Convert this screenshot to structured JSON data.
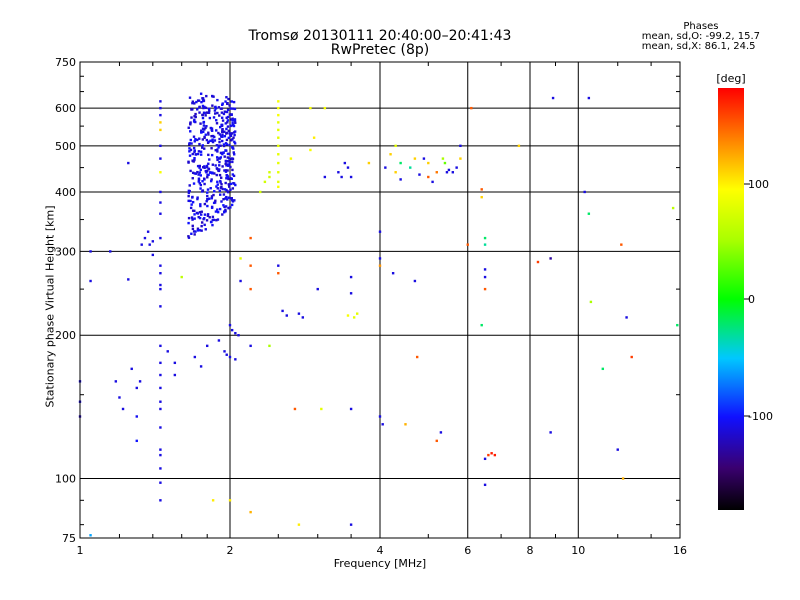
{
  "title": {
    "line1": "Tromsø 20130111 20:40:00–20:41:43",
    "line2": "RwPretec (8p)"
  },
  "phases_box": {
    "heading": "Phases",
    "line_o": "mean, sd,O: -99.2, 15.7",
    "line_x": "mean, sd,X:  86.1, 24.5"
  },
  "colorbar": {
    "unit_label": "[deg]",
    "tick_labels": [
      "100",
      "0",
      "-100"
    ],
    "range": [
      -180,
      180
    ]
  },
  "chart_data": {
    "type": "scatter",
    "xlabel": "Frequency [MHz]",
    "ylabel": "Stationary phase Virtual Height [km]",
    "x_scale": "log",
    "y_scale": "log",
    "xlim": [
      1,
      16
    ],
    "ylim": [
      75,
      750
    ],
    "x_ticks": [
      "1",
      "2",
      "4",
      "6",
      "8",
      "10",
      "16"
    ],
    "y_ticks": [
      "750",
      "600",
      "500",
      "400",
      "300",
      "200",
      "100",
      "75"
    ],
    "grid_x": [
      2,
      4,
      6,
      8,
      10
    ],
    "grid_y": [
      100,
      200,
      300,
      400,
      500,
      600
    ],
    "legend": "colorbar right",
    "points": [
      {
        "x": 1.0,
        "y": 160,
        "p": -110
      },
      {
        "x": 1.0,
        "y": 145,
        "p": -110
      },
      {
        "x": 1.0,
        "y": 135,
        "p": -120
      },
      {
        "x": 1.05,
        "y": 300,
        "p": -110
      },
      {
        "x": 1.05,
        "y": 260,
        "p": -110
      },
      {
        "x": 1.05,
        "y": 76,
        "p": -60
      },
      {
        "x": 1.15,
        "y": 300,
        "p": -110
      },
      {
        "x": 1.18,
        "y": 160,
        "p": -110
      },
      {
        "x": 1.2,
        "y": 148,
        "p": -110
      },
      {
        "x": 1.22,
        "y": 140,
        "p": -110
      },
      {
        "x": 1.25,
        "y": 460,
        "p": -110
      },
      {
        "x": 1.25,
        "y": 262,
        "p": -110
      },
      {
        "x": 1.27,
        "y": 170,
        "p": -110
      },
      {
        "x": 1.3,
        "y": 155,
        "p": -110
      },
      {
        "x": 1.3,
        "y": 135,
        "p": -105
      },
      {
        "x": 1.32,
        "y": 160,
        "p": -110
      },
      {
        "x": 1.33,
        "y": 310,
        "p": -110
      },
      {
        "x": 1.35,
        "y": 320,
        "p": -110
      },
      {
        "x": 1.37,
        "y": 330,
        "p": -110
      },
      {
        "x": 1.38,
        "y": 310,
        "p": -110
      },
      {
        "x": 1.4,
        "y": 315,
        "p": -110
      },
      {
        "x": 1.4,
        "y": 295,
        "p": -110
      },
      {
        "x": 1.3,
        "y": 120,
        "p": -100
      },
      {
        "x": 1.45,
        "y": 620,
        "p": -110
      },
      {
        "x": 1.45,
        "y": 600,
        "p": -110
      },
      {
        "x": 1.45,
        "y": 580,
        "p": -110
      },
      {
        "x": 1.45,
        "y": 560,
        "p": 110
      },
      {
        "x": 1.45,
        "y": 540,
        "p": 110
      },
      {
        "x": 1.45,
        "y": 500,
        "p": -110
      },
      {
        "x": 1.45,
        "y": 470,
        "p": -110
      },
      {
        "x": 1.45,
        "y": 440,
        "p": 90
      },
      {
        "x": 1.45,
        "y": 400,
        "p": -110
      },
      {
        "x": 1.45,
        "y": 380,
        "p": -110
      },
      {
        "x": 1.45,
        "y": 360,
        "p": -110
      },
      {
        "x": 1.45,
        "y": 320,
        "p": -110
      },
      {
        "x": 1.45,
        "y": 280,
        "p": -110
      },
      {
        "x": 1.45,
        "y": 270,
        "p": -110
      },
      {
        "x": 1.45,
        "y": 255,
        "p": -110
      },
      {
        "x": 1.45,
        "y": 250,
        "p": -110
      },
      {
        "x": 1.45,
        "y": 230,
        "p": -110
      },
      {
        "x": 1.45,
        "y": 190,
        "p": -110
      },
      {
        "x": 1.45,
        "y": 175,
        "p": -110
      },
      {
        "x": 1.45,
        "y": 165,
        "p": -110
      },
      {
        "x": 1.45,
        "y": 155,
        "p": -110
      },
      {
        "x": 1.45,
        "y": 145,
        "p": -110
      },
      {
        "x": 1.45,
        "y": 140,
        "p": -110
      },
      {
        "x": 1.45,
        "y": 128,
        "p": -110
      },
      {
        "x": 1.45,
        "y": 115,
        "p": -110
      },
      {
        "x": 1.45,
        "y": 112,
        "p": -110
      },
      {
        "x": 1.45,
        "y": 105,
        "p": -110
      },
      {
        "x": 1.45,
        "y": 98,
        "p": -110
      },
      {
        "x": 1.45,
        "y": 90,
        "p": -110
      },
      {
        "x": 1.5,
        "y": 185,
        "p": -110
      },
      {
        "x": 1.55,
        "y": 175,
        "p": -110
      },
      {
        "x": 1.55,
        "y": 165,
        "p": -110
      },
      {
        "x": 1.6,
        "y": 265,
        "p": 60
      },
      {
        "x": 1.7,
        "y": 180,
        "p": -110
      },
      {
        "x": 1.75,
        "y": 172,
        "p": -110
      },
      {
        "x": 1.8,
        "y": 190,
        "p": -110
      },
      {
        "x": 1.85,
        "y": 90,
        "p": 100
      },
      {
        "x": 1.9,
        "y": 195,
        "p": -110
      },
      {
        "x": 1.95,
        "y": 185,
        "p": -110
      },
      {
        "x": 1.97,
        "y": 182,
        "p": -110
      },
      {
        "x": 2.0,
        "y": 180,
        "p": -110
      },
      {
        "x": 2.05,
        "y": 178,
        "p": -110
      },
      {
        "x": 2.0,
        "y": 210,
        "p": -110
      },
      {
        "x": 2.02,
        "y": 205,
        "p": -110
      },
      {
        "x": 2.05,
        "y": 202,
        "p": -110
      },
      {
        "x": 2.08,
        "y": 200,
        "p": -110
      },
      {
        "x": 2.0,
        "y": 90,
        "p": 100
      },
      {
        "x": 2.1,
        "y": 290,
        "p": 80
      },
      {
        "x": 2.1,
        "y": 260,
        "p": -110
      },
      {
        "x": 2.2,
        "y": 320,
        "p": 150
      },
      {
        "x": 2.2,
        "y": 280,
        "p": 150
      },
      {
        "x": 2.2,
        "y": 250,
        "p": 150
      },
      {
        "x": 2.2,
        "y": 190,
        "p": -110
      },
      {
        "x": 2.2,
        "y": 85,
        "p": 120
      },
      {
        "x": 2.3,
        "y": 400,
        "p": 70
      },
      {
        "x": 2.35,
        "y": 420,
        "p": 70
      },
      {
        "x": 2.4,
        "y": 430,
        "p": 70
      },
      {
        "x": 2.4,
        "y": 440,
        "p": 70
      },
      {
        "x": 2.4,
        "y": 190,
        "p": 50
      },
      {
        "x": 2.5,
        "y": 280,
        "p": -110
      },
      {
        "x": 2.5,
        "y": 270,
        "p": 150
      },
      {
        "x": 2.55,
        "y": 225,
        "p": -110
      },
      {
        "x": 2.6,
        "y": 220,
        "p": -110
      },
      {
        "x": 2.5,
        "y": 620,
        "p": 90
      },
      {
        "x": 2.5,
        "y": 600,
        "p": 90
      },
      {
        "x": 2.5,
        "y": 580,
        "p": 90
      },
      {
        "x": 2.5,
        "y": 560,
        "p": 80
      },
      {
        "x": 2.5,
        "y": 540,
        "p": 80
      },
      {
        "x": 2.5,
        "y": 520,
        "p": 80
      },
      {
        "x": 2.5,
        "y": 500,
        "p": 80
      },
      {
        "x": 2.5,
        "y": 480,
        "p": 80
      },
      {
        "x": 2.5,
        "y": 460,
        "p": 80
      },
      {
        "x": 2.5,
        "y": 440,
        "p": 80
      },
      {
        "x": 2.5,
        "y": 420,
        "p": 80
      },
      {
        "x": 2.5,
        "y": 410,
        "p": 90
      },
      {
        "x": 2.65,
        "y": 470,
        "p": 90
      },
      {
        "x": 2.7,
        "y": 140,
        "p": 150
      },
      {
        "x": 2.75,
        "y": 222,
        "p": -110
      },
      {
        "x": 2.8,
        "y": 218,
        "p": -110
      },
      {
        "x": 2.75,
        "y": 80,
        "p": 100
      },
      {
        "x": 2.9,
        "y": 600,
        "p": 90
      },
      {
        "x": 2.9,
        "y": 490,
        "p": 90
      },
      {
        "x": 2.95,
        "y": 520,
        "p": 100
      },
      {
        "x": 3.0,
        "y": 250,
        "p": -110
      },
      {
        "x": 3.05,
        "y": 140,
        "p": 80
      },
      {
        "x": 3.1,
        "y": 600,
        "p": 90
      },
      {
        "x": 3.1,
        "y": 430,
        "p": -110
      },
      {
        "x": 3.3,
        "y": 440,
        "p": -110
      },
      {
        "x": 3.35,
        "y": 430,
        "p": -110
      },
      {
        "x": 3.4,
        "y": 460,
        "p": -110
      },
      {
        "x": 3.45,
        "y": 450,
        "p": -110
      },
      {
        "x": 3.5,
        "y": 430,
        "p": -110
      },
      {
        "x": 3.45,
        "y": 220,
        "p": 90
      },
      {
        "x": 3.5,
        "y": 265,
        "p": -110
      },
      {
        "x": 3.5,
        "y": 245,
        "p": -110
      },
      {
        "x": 3.55,
        "y": 218,
        "p": 80
      },
      {
        "x": 3.6,
        "y": 222,
        "p": 80
      },
      {
        "x": 3.5,
        "y": 140,
        "p": -110
      },
      {
        "x": 3.5,
        "y": 80,
        "p": -110
      },
      {
        "x": 3.8,
        "y": 460,
        "p": 110
      },
      {
        "x": 4.0,
        "y": 330,
        "p": -110
      },
      {
        "x": 4.0,
        "y": 290,
        "p": -110
      },
      {
        "x": 4.0,
        "y": 280,
        "p": 130
      },
      {
        "x": 4.0,
        "y": 135,
        "p": -110
      },
      {
        "x": 4.05,
        "y": 130,
        "p": -110
      },
      {
        "x": 4.1,
        "y": 450,
        "p": -110
      },
      {
        "x": 4.2,
        "y": 480,
        "p": 110
      },
      {
        "x": 4.25,
        "y": 270,
        "p": -110
      },
      {
        "x": 4.3,
        "y": 440,
        "p": 110
      },
      {
        "x": 4.3,
        "y": 500,
        "p": 80
      },
      {
        "x": 4.4,
        "y": 460,
        "p": -20
      },
      {
        "x": 4.4,
        "y": 425,
        "p": -110
      },
      {
        "x": 4.5,
        "y": 130,
        "p": 120
      },
      {
        "x": 4.6,
        "y": 450,
        "p": -30
      },
      {
        "x": 4.7,
        "y": 470,
        "p": 110
      },
      {
        "x": 4.7,
        "y": 260,
        "p": -110
      },
      {
        "x": 4.75,
        "y": 180,
        "p": 150
      },
      {
        "x": 4.8,
        "y": 435,
        "p": -110
      },
      {
        "x": 4.9,
        "y": 470,
        "p": -110
      },
      {
        "x": 5.0,
        "y": 460,
        "p": 110
      },
      {
        "x": 5.0,
        "y": 430,
        "p": 150
      },
      {
        "x": 5.1,
        "y": 420,
        "p": -110
      },
      {
        "x": 5.2,
        "y": 440,
        "p": 140
      },
      {
        "x": 5.2,
        "y": 120,
        "p": 150
      },
      {
        "x": 5.3,
        "y": 125,
        "p": -110
      },
      {
        "x": 5.35,
        "y": 470,
        "p": 50
      },
      {
        "x": 5.4,
        "y": 460,
        "p": 30
      },
      {
        "x": 5.45,
        "y": 440,
        "p": -110
      },
      {
        "x": 5.5,
        "y": 445,
        "p": -110
      },
      {
        "x": 5.6,
        "y": 440,
        "p": -110
      },
      {
        "x": 5.7,
        "y": 450,
        "p": -110
      },
      {
        "x": 5.8,
        "y": 470,
        "p": 110
      },
      {
        "x": 5.8,
        "y": 500,
        "p": -110
      },
      {
        "x": 6.0,
        "y": 310,
        "p": 150
      },
      {
        "x": 6.1,
        "y": 600,
        "p": 150
      },
      {
        "x": 6.4,
        "y": 405,
        "p": 150
      },
      {
        "x": 6.4,
        "y": 390,
        "p": 110
      },
      {
        "x": 6.5,
        "y": 320,
        "p": -20
      },
      {
        "x": 6.5,
        "y": 310,
        "p": -30
      },
      {
        "x": 6.5,
        "y": 275,
        "p": -110
      },
      {
        "x": 6.5,
        "y": 265,
        "p": -110
      },
      {
        "x": 6.5,
        "y": 250,
        "p": 150
      },
      {
        "x": 6.4,
        "y": 210,
        "p": -20
      },
      {
        "x": 6.5,
        "y": 110,
        "p": -110
      },
      {
        "x": 6.6,
        "y": 112,
        "p": 160
      },
      {
        "x": 6.7,
        "y": 113,
        "p": 170
      },
      {
        "x": 6.8,
        "y": 112,
        "p": 170
      },
      {
        "x": 6.5,
        "y": 97,
        "p": -110
      },
      {
        "x": 7.6,
        "y": 500,
        "p": 110
      },
      {
        "x": 8.3,
        "y": 285,
        "p": 160
      },
      {
        "x": 8.8,
        "y": 290,
        "p": -130
      },
      {
        "x": 8.8,
        "y": 125,
        "p": -110
      },
      {
        "x": 8.9,
        "y": 630,
        "p": -110
      },
      {
        "x": 10.3,
        "y": 400,
        "p": -110
      },
      {
        "x": 10.5,
        "y": 630,
        "p": -110
      },
      {
        "x": 10.5,
        "y": 360,
        "p": -20
      },
      {
        "x": 10.6,
        "y": 235,
        "p": 50
      },
      {
        "x": 11.2,
        "y": 170,
        "p": -20
      },
      {
        "x": 12.0,
        "y": 115,
        "p": -110
      },
      {
        "x": 12.2,
        "y": 310,
        "p": 150
      },
      {
        "x": 12.3,
        "y": 100,
        "p": 120
      },
      {
        "x": 12.5,
        "y": 218,
        "p": -110
      },
      {
        "x": 12.8,
        "y": 180,
        "p": 160
      },
      {
        "x": 15.5,
        "y": 370,
        "p": 60
      },
      {
        "x": 15.8,
        "y": 210,
        "p": -20
      }
    ],
    "cluster": {
      "x_range": [
        1.65,
        2.05
      ],
      "y_range": [
        320,
        650
      ],
      "phase": -110,
      "count": 480
    }
  }
}
